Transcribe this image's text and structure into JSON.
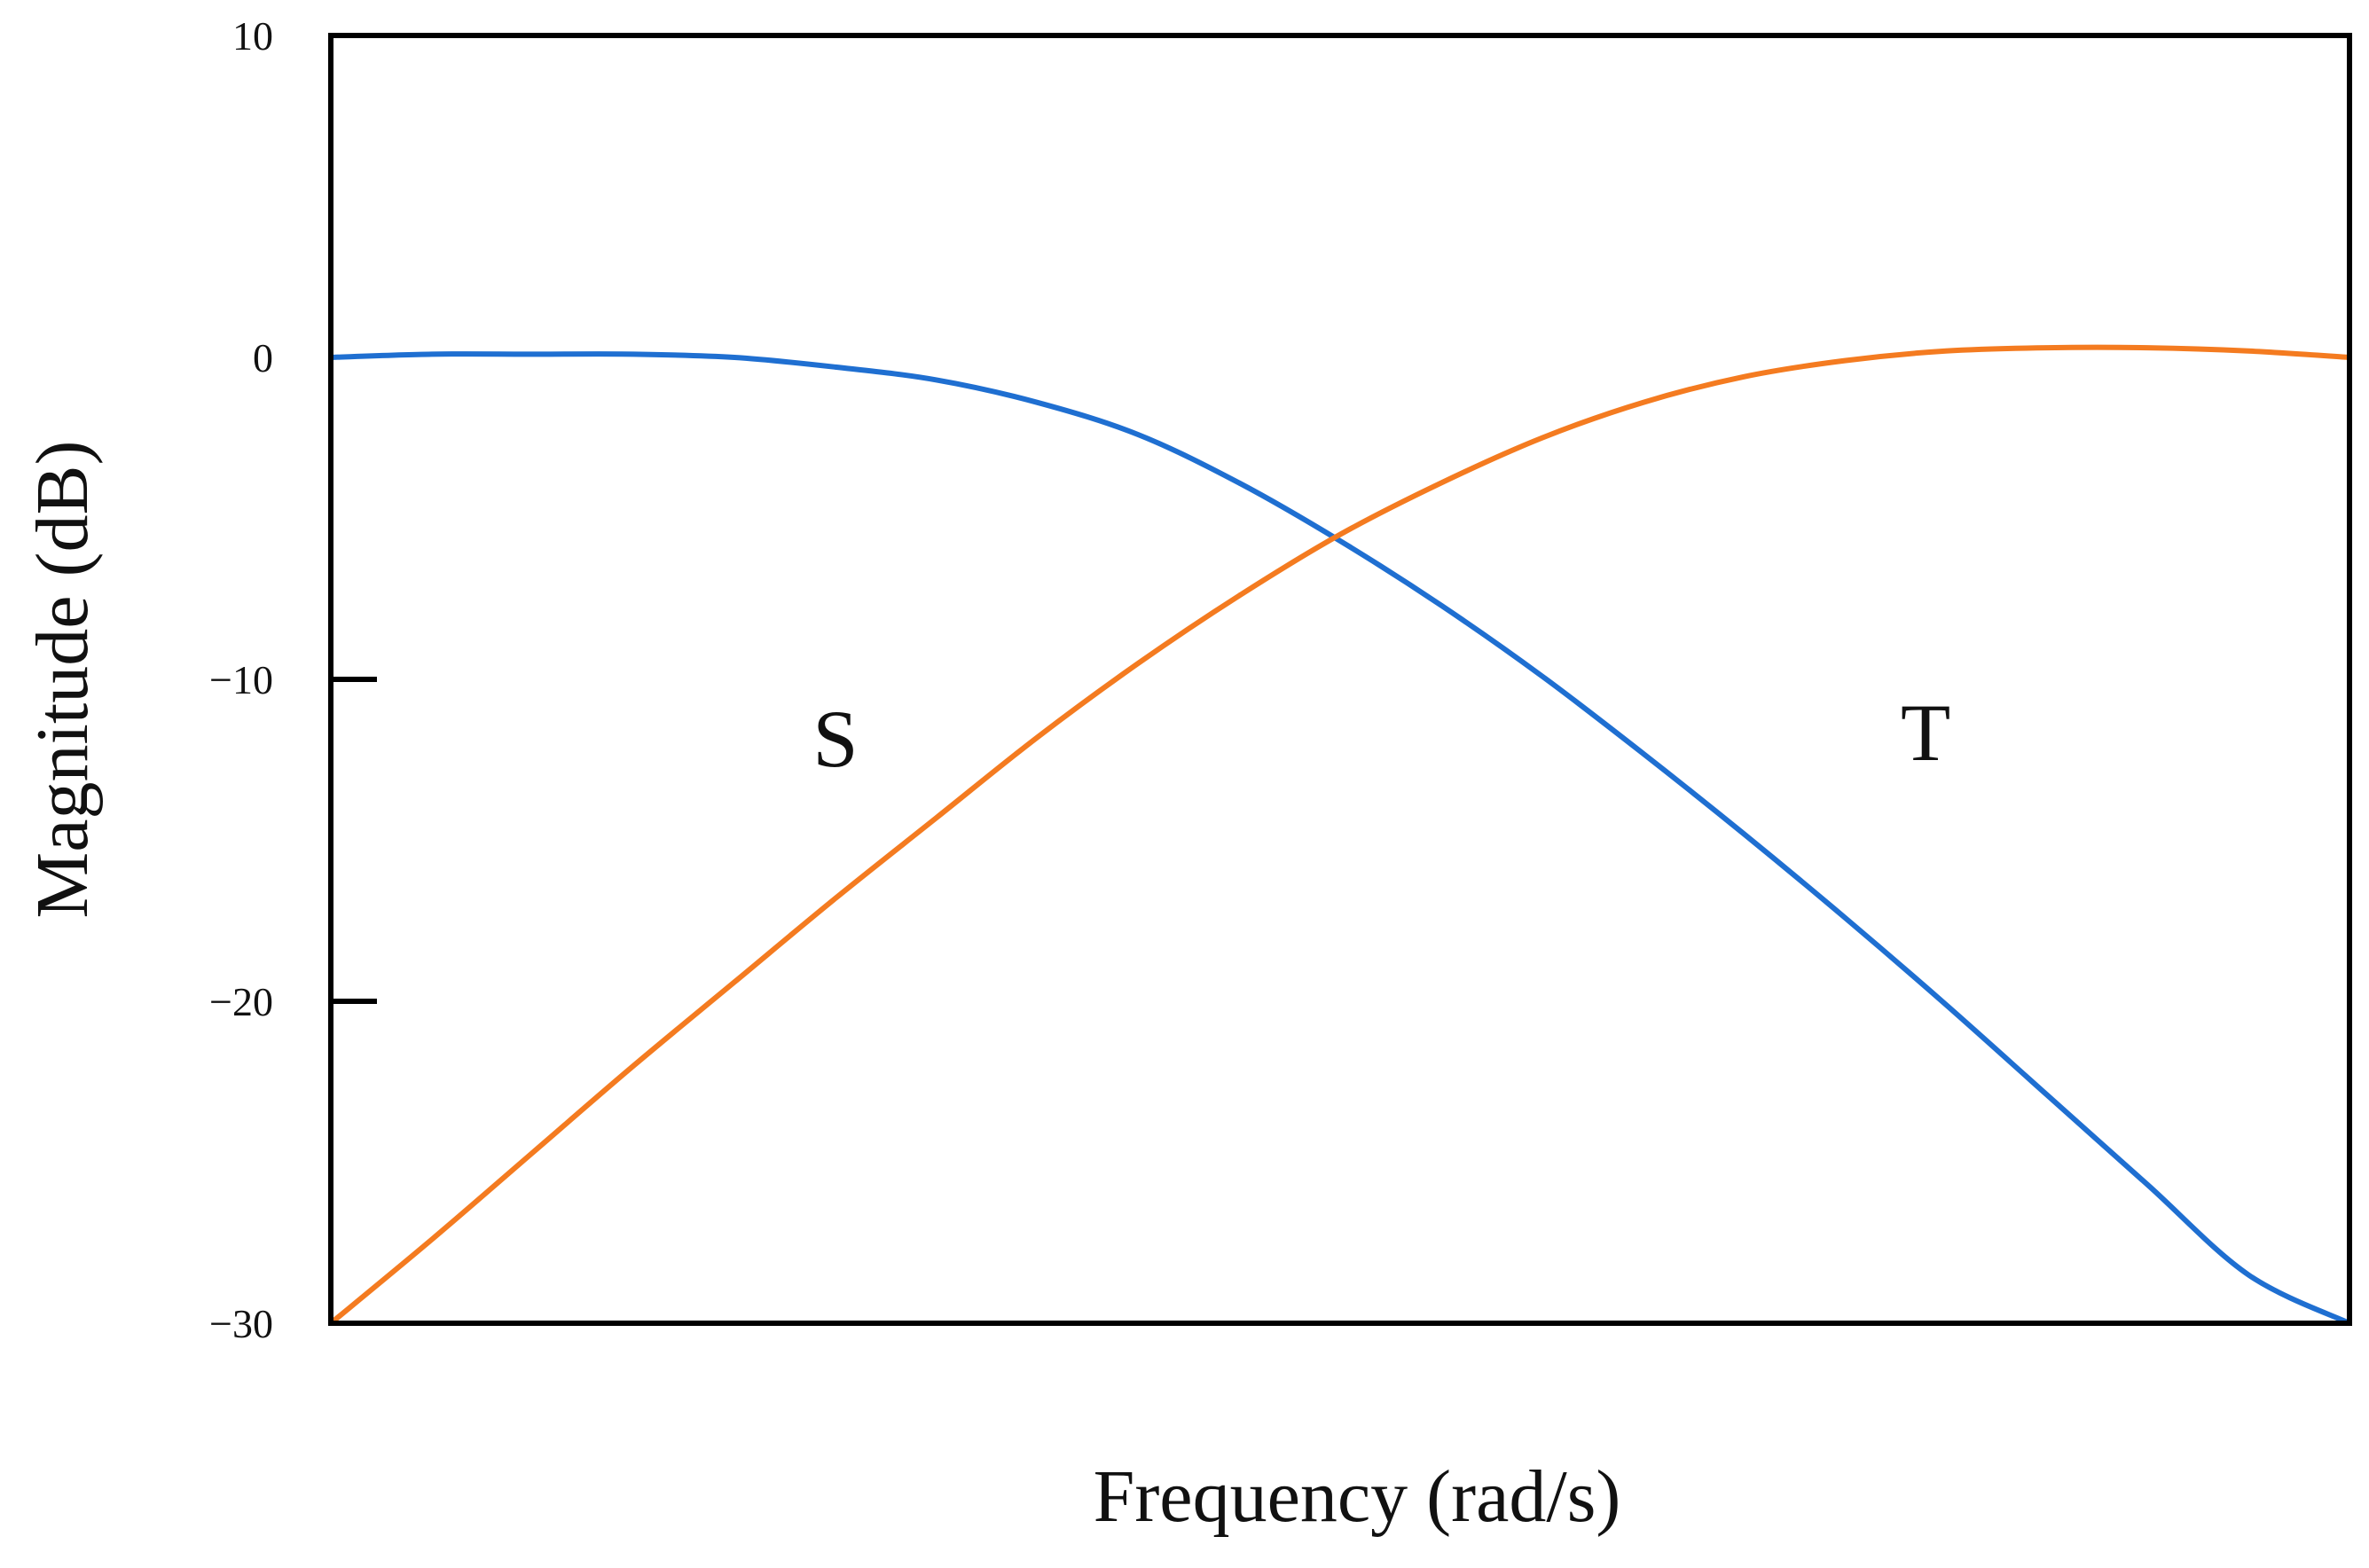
{
  "chart_data": {
    "type": "line",
    "title": "",
    "xlabel": "Frequency (rad/s)",
    "ylabel": "Magnitude (dB)",
    "ylim": [
      -30,
      10
    ],
    "xlim": [
      0,
      1
    ],
    "x_ticks_shown": false,
    "grid": false,
    "legend": "none",
    "y_ticks": [
      {
        "value": 10,
        "label": "10",
        "tick_mark": false
      },
      {
        "value": 0,
        "label": "0",
        "tick_mark": false
      },
      {
        "value": -10,
        "label": "−10",
        "tick_mark": true
      },
      {
        "value": -20,
        "label": "−20",
        "tick_mark": true
      },
      {
        "value": -30,
        "label": "−30",
        "tick_mark": false
      }
    ],
    "series": [
      {
        "color": "#1f6fd1",
        "x": [
          0.0,
          0.05,
          0.1,
          0.15,
          0.2,
          0.25,
          0.3,
          0.35,
          0.4,
          0.45,
          0.5,
          0.55,
          0.6,
          0.65,
          0.7,
          0.75,
          0.8,
          0.85,
          0.9,
          0.95,
          1.0
        ],
        "values": [
          0.0,
          0.1,
          0.1,
          0.1,
          0.0,
          -0.3,
          -0.7,
          -1.4,
          -2.4,
          -3.9,
          -5.7,
          -7.7,
          -9.9,
          -12.3,
          -14.8,
          -17.4,
          -20.1,
          -22.9,
          -25.7,
          -28.5,
          -30.0
        ]
      },
      {
        "color": "#f47b20",
        "x": [
          0.0,
          0.05,
          0.1,
          0.15,
          0.2,
          0.25,
          0.3,
          0.35,
          0.4,
          0.45,
          0.5,
          0.55,
          0.6,
          0.65,
          0.7,
          0.75,
          0.8,
          0.85,
          0.9,
          0.95,
          1.0
        ],
        "values": [
          -30.0,
          -27.4,
          -24.7,
          -22.0,
          -19.4,
          -16.8,
          -14.3,
          -11.8,
          -9.5,
          -7.4,
          -5.5,
          -3.9,
          -2.5,
          -1.4,
          -0.6,
          -0.1,
          0.2,
          0.3,
          0.3,
          0.2,
          0.0
        ]
      }
    ],
    "annotations": [
      {
        "text": "S",
        "x": 0.25,
        "y": -12.7
      },
      {
        "text": "T",
        "x": 0.79,
        "y": -12.5
      }
    ]
  }
}
